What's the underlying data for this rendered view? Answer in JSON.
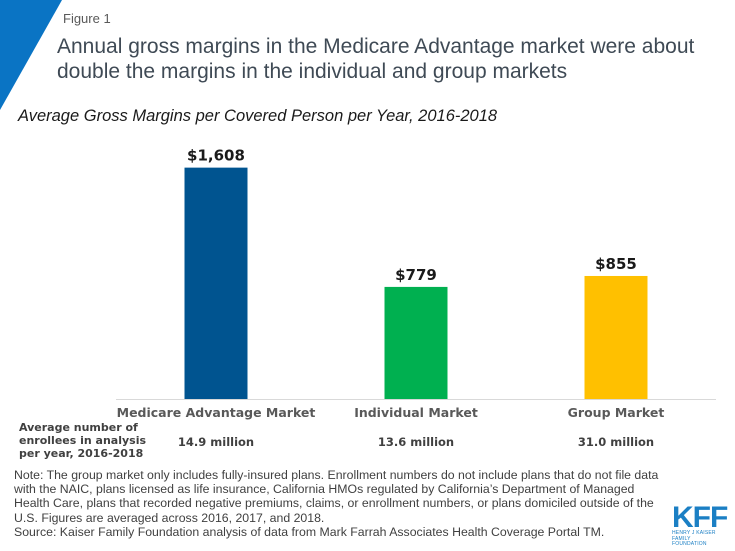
{
  "header": {
    "figure_label": "Figure 1",
    "title": "Annual gross margins in the Medicare Advantage  market were about double the margins in the individual and group markets",
    "subtitle": "Average Gross Margins per Covered Person per Year, 2016-2018"
  },
  "colors": {
    "corner_accent": "#0a74c4",
    "medicare": "#005490",
    "individual": "#00b050",
    "group": "#ffc000",
    "axis": "#d9d9d9"
  },
  "chart_data": {
    "type": "bar",
    "title": "Average Gross Margins per Covered Person per Year, 2016-2018",
    "xlabel": "",
    "ylabel": "",
    "categories": [
      "Medicare Advantage Market",
      "Individual Market",
      "Group Market"
    ],
    "values": [
      1608,
      779,
      855
    ],
    "value_labels": [
      "$1,608",
      "$779",
      "$855"
    ],
    "bar_colors": [
      "#005490",
      "#00b050",
      "#ffc000"
    ],
    "ylim": [
      0,
      1800
    ],
    "grid": false,
    "legend": "none"
  },
  "enrollees": {
    "heading": "Average number of enrollees in analysis per year, 2016-2018",
    "values": [
      "14.9 million",
      "13.6 million",
      "31.0 million"
    ]
  },
  "notes": {
    "note": "Note: The group market only includes fully-insured  plans. Enrollment  numbers do not include plans that do not file data with the NAIC, plans licensed as life insurance,  California HMOs regulated by California’s Department of Managed Health Care, plans that  recorded negative premiums, claims, or enrollment  numbers,  or plans domiciled outside of the U.S. Figures are averaged across 2016, 2017, and 2018.",
    "source": "Source: Kaiser Family Foundation analysis of data from Mark Farrah Associates Health Coverage Portal TM."
  },
  "logo": {
    "main": "KFF",
    "line1": "HENRY J KAISER",
    "line2": "FAMILY FOUNDATION"
  }
}
